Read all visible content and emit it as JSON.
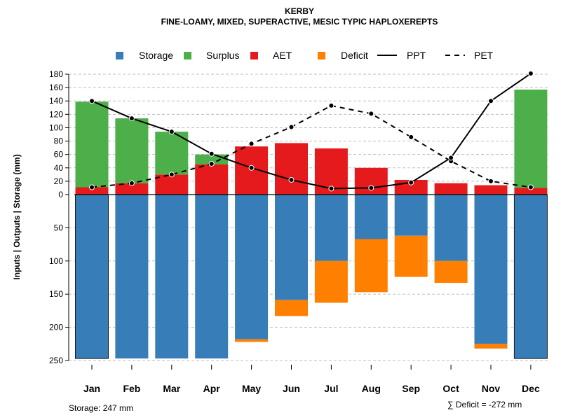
{
  "chart_data": {
    "type": "bar+line",
    "title": "KERBY",
    "subtitle": "FINE-LOAMY, MIXED, SUPERACTIVE, MESIC TYPIC HAPLOXEREPTS",
    "ylabel": "Inputs | Outputs | Storage    (mm)",
    "categories": [
      "Jan",
      "Feb",
      "Mar",
      "Apr",
      "May",
      "Jun",
      "Jul",
      "Aug",
      "Sep",
      "Oct",
      "Nov",
      "Dec"
    ],
    "upper_ylim": [
      0,
      180
    ],
    "upper_ticks": [
      "0",
      "20",
      "40",
      "60",
      "80",
      "100",
      "120",
      "140",
      "160",
      "180"
    ],
    "lower_ylim": [
      0,
      250
    ],
    "lower_ticks": [
      "0",
      "50",
      "100",
      "150",
      "200",
      "250"
    ],
    "colors": {
      "storage": "#377eb8",
      "surplus": "#4daf4a",
      "aet": "#e41a1c",
      "deficit": "#ff7f00",
      "line": "#000000"
    },
    "legend": [
      {
        "key": "storage",
        "label": "Storage",
        "kind": "box"
      },
      {
        "key": "surplus",
        "label": "Surplus",
        "kind": "box"
      },
      {
        "key": "aet",
        "label": "AET",
        "kind": "box"
      },
      {
        "key": "deficit",
        "label": "Deficit",
        "kind": "box"
      },
      {
        "key": "ppt",
        "label": "PPT",
        "kind": "solid"
      },
      {
        "key": "pet",
        "label": "PET",
        "kind": "dashed"
      }
    ],
    "series": [
      {
        "name": "AET",
        "values": [
          11,
          17,
          30,
          45,
          72,
          77,
          69,
          40,
          22,
          17,
          14,
          10
        ]
      },
      {
        "name": "Surplus",
        "values": [
          128,
          97,
          64,
          15,
          0,
          0,
          0,
          0,
          0,
          0,
          0,
          147
        ]
      },
      {
        "name": "Storage",
        "values": [
          247,
          247,
          247,
          247,
          218,
          159,
          100,
          67,
          62,
          100,
          225,
          247
        ]
      },
      {
        "name": "Deficit",
        "values": [
          0,
          0,
          0,
          0,
          4,
          24,
          63,
          80,
          62,
          33,
          7,
          0
        ]
      },
      {
        "name": "PPT",
        "values": [
          140,
          114,
          94,
          61,
          40,
          22,
          9,
          10,
          18,
          55,
          140,
          181
        ]
      },
      {
        "name": "PET",
        "values": [
          11,
          17,
          30,
          46,
          76,
          101,
          133,
          121,
          86,
          50,
          20,
          11
        ]
      }
    ],
    "storage_note": "Storage: 247 mm",
    "deficit_note": "∑ Deficit = -272 mm"
  }
}
